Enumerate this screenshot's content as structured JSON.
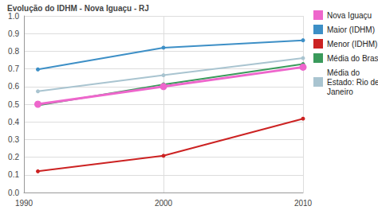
{
  "chart_data": {
    "type": "line",
    "title": "Evolução do IDHM - Nova Iguaçu - RJ",
    "x": [
      1991,
      2000,
      2010
    ],
    "xlim": [
      1990,
      2010
    ],
    "xticks": [
      1990,
      2000,
      2010
    ],
    "ylim": [
      0,
      1
    ],
    "yticks": [
      {
        "value": 0,
        "label": "0.0"
      },
      0.1,
      0.2,
      0.3,
      0.4,
      0.5,
      0.6,
      0.7,
      0.8,
      0.9,
      {
        "value": 1,
        "label": "1.0"
      }
    ],
    "grid": true,
    "legend": "right",
    "marker": "circle",
    "series": [
      {
        "name": "Nova Iguaçu",
        "color": "#ee66cc",
        "values": [
          0.5,
          0.6,
          0.71
        ]
      },
      {
        "name": "Maior (IDHM)",
        "color": "#3d8fc6",
        "values": [
          0.697,
          0.82,
          0.862
        ]
      },
      {
        "name": "Menor (IDHM)",
        "color": "#cc2222",
        "values": [
          0.12,
          0.208,
          0.418
        ]
      },
      {
        "name": "Média do Brasil",
        "color": "#3a9a5b",
        "values": [
          0.493,
          0.612,
          0.727
        ]
      },
      {
        "name": "Média do Estado: Rio de Janeiro",
        "color": "#a9c4d0",
        "values": [
          0.573,
          0.664,
          0.761
        ]
      }
    ]
  }
}
